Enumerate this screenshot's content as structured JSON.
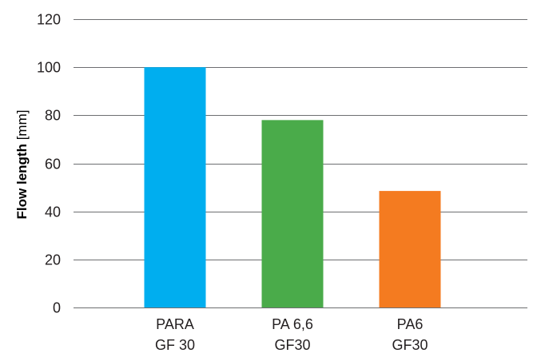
{
  "chart_data": {
    "type": "bar",
    "categories": [
      [
        "PARA",
        "GF 30"
      ],
      [
        "PA 6,6",
        "GF30"
      ],
      [
        "PA6",
        "GF30"
      ]
    ],
    "values": [
      100,
      78,
      48.5
    ],
    "colors": [
      "#00aeef",
      "#4aab4a",
      "#f47b20"
    ],
    "ylabel_bold": "Flow length",
    "ylabel_unit": " [mm]",
    "ylim": [
      0,
      120
    ],
    "yticks": [
      0,
      20,
      40,
      60,
      80,
      100,
      120
    ],
    "grid": true,
    "grid_color": "#6d6e71"
  }
}
